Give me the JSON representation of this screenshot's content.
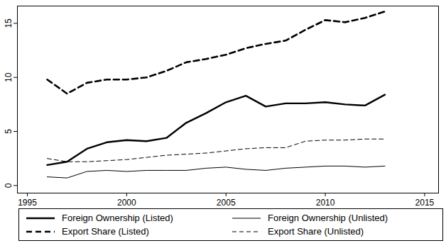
{
  "chart_data": {
    "type": "line",
    "x": [
      1996,
      1997,
      1998,
      1999,
      2000,
      2001,
      2002,
      2003,
      2004,
      2005,
      2006,
      2007,
      2008,
      2009,
      2010,
      2011,
      2012,
      2013
    ],
    "series": [
      {
        "name": "Foreign Ownership (Listed)",
        "color": "#000000",
        "line_style": "solid-thick",
        "values": [
          1.9,
          2.2,
          3.4,
          4.0,
          4.2,
          4.1,
          4.4,
          5.8,
          6.7,
          7.7,
          8.3,
          7.3,
          7.6,
          7.6,
          7.7,
          7.5,
          7.4,
          8.4
        ]
      },
      {
        "name": "Foreign Ownership (Unlisted)",
        "color": "#000000",
        "line_style": "solid",
        "values": [
          0.8,
          0.7,
          1.3,
          1.4,
          1.3,
          1.4,
          1.4,
          1.4,
          1.6,
          1.7,
          1.5,
          1.4,
          1.6,
          1.7,
          1.8,
          1.8,
          1.7,
          1.8
        ]
      },
      {
        "name": "Export Share (Listed)",
        "color": "#000000",
        "line_style": "dashed-thick",
        "values": [
          9.8,
          8.5,
          9.5,
          9.8,
          9.8,
          10.0,
          10.6,
          11.4,
          11.7,
          12.1,
          12.7,
          13.1,
          13.4,
          14.4,
          15.3,
          15.1,
          15.5,
          16.1
        ]
      },
      {
        "name": "Export Share (Unlisted)",
        "color": "#000000",
        "line_style": "dashed",
        "values": [
          2.5,
          2.2,
          2.2,
          2.3,
          2.4,
          2.6,
          2.8,
          2.9,
          3.0,
          3.2,
          3.4,
          3.5,
          3.5,
          4.1,
          4.2,
          4.2,
          4.3,
          4.3
        ]
      }
    ],
    "xlim": [
      1994.5,
      2015.7
    ],
    "xticks": [
      1995,
      2000,
      2005,
      2010,
      2015
    ],
    "ylim": [
      -0.7,
      16.6
    ],
    "yticks": [
      0,
      5,
      10,
      15
    ],
    "grid": false,
    "legend": "bottom"
  }
}
